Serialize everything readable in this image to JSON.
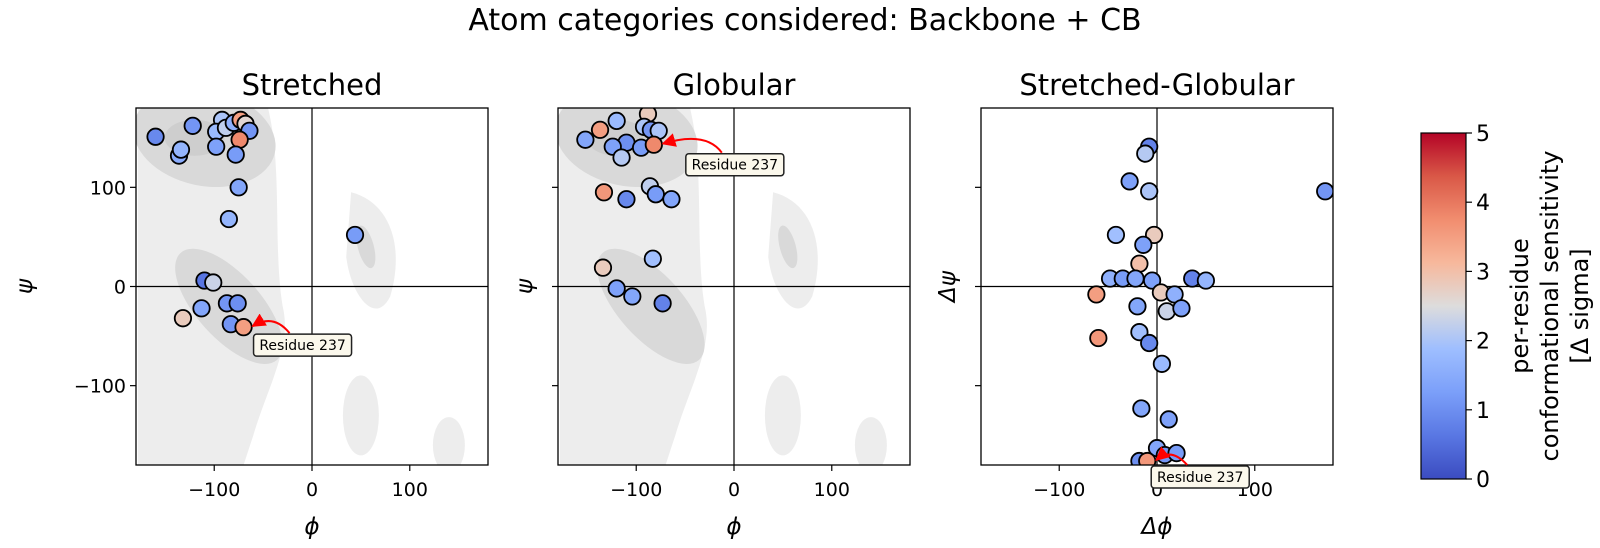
{
  "title": "Atom categories considered: Backbone + CB",
  "annotation_label": "Residue 237",
  "colorbar": {
    "label_lines": [
      "per-residue",
      "conformational sensitivity",
      "[Δ sigma]"
    ],
    "range": [
      0,
      5
    ],
    "ticks": [
      "0",
      "1",
      "2",
      "3",
      "4",
      "5"
    ],
    "colormap": "coolwarm"
  },
  "chart_data": [
    {
      "type": "scatter",
      "title": "Stretched",
      "xlabel": "ϕ",
      "ylabel": "ψ",
      "xlim": [
        -180,
        180
      ],
      "ylim": [
        -180,
        180
      ],
      "xticks": [
        "−100",
        "0",
        "100"
      ],
      "yticks": [
        "100",
        "0",
        "−100"
      ],
      "show_y_ticklabels": true,
      "background": "ramachandran density contours",
      "points": [
        {
          "x": -160,
          "y": 151,
          "c": 0.9
        },
        {
          "x": -136,
          "y": 132,
          "c": 1.5
        },
        {
          "x": -134,
          "y": 138,
          "c": 1.7
        },
        {
          "x": -122,
          "y": 162,
          "c": 1.1
        },
        {
          "x": -92,
          "y": 168,
          "c": 2.0
        },
        {
          "x": -98,
          "y": 156,
          "c": 1.8
        },
        {
          "x": -88,
          "y": 160,
          "c": 2.2
        },
        {
          "x": -80,
          "y": 165,
          "c": 1.6
        },
        {
          "x": -73,
          "y": 168,
          "c": 3.5
        },
        {
          "x": -68,
          "y": 164,
          "c": 2.6
        },
        {
          "x": -64,
          "y": 157,
          "c": 1.1
        },
        {
          "x": -74,
          "y": 148,
          "c": 3.8
        },
        {
          "x": -98,
          "y": 141,
          "c": 1.3
        },
        {
          "x": -78,
          "y": 133,
          "c": 1.2
        },
        {
          "x": -75,
          "y": 100,
          "c": 1.4
        },
        {
          "x": -85,
          "y": 68,
          "c": 1.7
        },
        {
          "x": 44,
          "y": 52,
          "c": 1.2
        },
        {
          "x": -110,
          "y": 6,
          "c": 0.6
        },
        {
          "x": -101,
          "y": 4,
          "c": 2.3
        },
        {
          "x": -87,
          "y": -17,
          "c": 1.1
        },
        {
          "x": -76,
          "y": -17,
          "c": 1.0
        },
        {
          "x": -113,
          "y": -22,
          "c": 1.4
        },
        {
          "x": -132,
          "y": -32,
          "c": 2.8
        },
        {
          "x": -83,
          "y": -38,
          "c": 1.1
        },
        {
          "x": -70,
          "y": -41,
          "c": 3.5
        }
      ],
      "annotation": {
        "x": -70,
        "y": -41
      }
    },
    {
      "type": "scatter",
      "title": "Globular",
      "xlabel": "ϕ",
      "ylabel": "ψ",
      "xlim": [
        -180,
        180
      ],
      "ylim": [
        -180,
        180
      ],
      "xticks": [
        "−100",
        "0",
        "100"
      ],
      "yticks": [
        "",
        "",
        ""
      ],
      "show_y_ticklabels": false,
      "background": "ramachandran density contours",
      "points": [
        {
          "x": -120,
          "y": 167,
          "c": 1.8
        },
        {
          "x": -88,
          "y": 174,
          "c": 2.8
        },
        {
          "x": -92,
          "y": 161,
          "c": 2.0
        },
        {
          "x": -85,
          "y": 158,
          "c": 1.1
        },
        {
          "x": -77,
          "y": 157,
          "c": 2.0
        },
        {
          "x": -137,
          "y": 158,
          "c": 3.5
        },
        {
          "x": -152,
          "y": 148,
          "c": 1.4
        },
        {
          "x": -110,
          "y": 145,
          "c": 1.0
        },
        {
          "x": -124,
          "y": 141,
          "c": 1.3
        },
        {
          "x": -95,
          "y": 140,
          "c": 1.2
        },
        {
          "x": -82,
          "y": 143,
          "c": 3.8
        },
        {
          "x": -115,
          "y": 130,
          "c": 2.1
        },
        {
          "x": -86,
          "y": 101,
          "c": 2.2
        },
        {
          "x": -80,
          "y": 93,
          "c": 1.2
        },
        {
          "x": -64,
          "y": 88,
          "c": 1.4
        },
        {
          "x": -133,
          "y": 95,
          "c": 3.6
        },
        {
          "x": -110,
          "y": 88,
          "c": 0.9
        },
        {
          "x": -83,
          "y": 28,
          "c": 1.9
        },
        {
          "x": -134,
          "y": 19,
          "c": 2.8
        },
        {
          "x": -120,
          "y": -2,
          "c": 1.3
        },
        {
          "x": -104,
          "y": -10,
          "c": 1.4
        },
        {
          "x": -73,
          "y": -17,
          "c": 0.8
        }
      ],
      "annotation": {
        "x": -82,
        "y": 143
      }
    },
    {
      "type": "scatter",
      "title": "Stretched-Globular",
      "xlabel": "Δϕ",
      "ylabel": "Δψ",
      "xlim": [
        -180,
        180
      ],
      "ylim": [
        -180,
        180
      ],
      "xticks": [
        "−100",
        "0",
        "100"
      ],
      "yticks": [
        "",
        "",
        ""
      ],
      "show_y_ticklabels": false,
      "background": "none",
      "points": [
        {
          "x": -8,
          "y": 141,
          "c": 0.8
        },
        {
          "x": -12,
          "y": 134,
          "c": 2.1
        },
        {
          "x": -28,
          "y": 106,
          "c": 1.3
        },
        {
          "x": -8,
          "y": 96,
          "c": 2.0
        },
        {
          "x": 172,
          "y": 96,
          "c": 1.1
        },
        {
          "x": -42,
          "y": 52,
          "c": 1.9
        },
        {
          "x": -3,
          "y": 52,
          "c": 2.8
        },
        {
          "x": -14,
          "y": 42,
          "c": 1.3
        },
        {
          "x": -18,
          "y": 23,
          "c": 3.0
        },
        {
          "x": -48,
          "y": 8,
          "c": 1.6
        },
        {
          "x": -35,
          "y": 8,
          "c": 1.2
        },
        {
          "x": -22,
          "y": 8,
          "c": 1.4
        },
        {
          "x": -5,
          "y": 6,
          "c": 1.3
        },
        {
          "x": 36,
          "y": 8,
          "c": 0.8
        },
        {
          "x": 50,
          "y": 6,
          "c": 1.7
        },
        {
          "x": -62,
          "y": -8,
          "c": 3.5
        },
        {
          "x": 4,
          "y": -6,
          "c": 2.8
        },
        {
          "x": 18,
          "y": -8,
          "c": 1.6
        },
        {
          "x": 10,
          "y": -25,
          "c": 2.3
        },
        {
          "x": 25,
          "y": -22,
          "c": 1.3
        },
        {
          "x": -20,
          "y": -20,
          "c": 1.4
        },
        {
          "x": -18,
          "y": -46,
          "c": 1.9
        },
        {
          "x": -60,
          "y": -52,
          "c": 3.6
        },
        {
          "x": -8,
          "y": -57,
          "c": 0.9
        },
        {
          "x": 5,
          "y": -78,
          "c": 1.8
        },
        {
          "x": -16,
          "y": -123,
          "c": 1.4
        },
        {
          "x": 12,
          "y": -134,
          "c": 1.3
        },
        {
          "x": 0,
          "y": -163,
          "c": 1.4
        },
        {
          "x": 8,
          "y": -170,
          "c": 1.1
        },
        {
          "x": 20,
          "y": -168,
          "c": 1.2
        },
        {
          "x": -18,
          "y": -176,
          "c": 1.0
        },
        {
          "x": -10,
          "y": -176,
          "c": 3.6
        }
      ],
      "annotation": {
        "x": -10,
        "y": -176
      }
    }
  ]
}
